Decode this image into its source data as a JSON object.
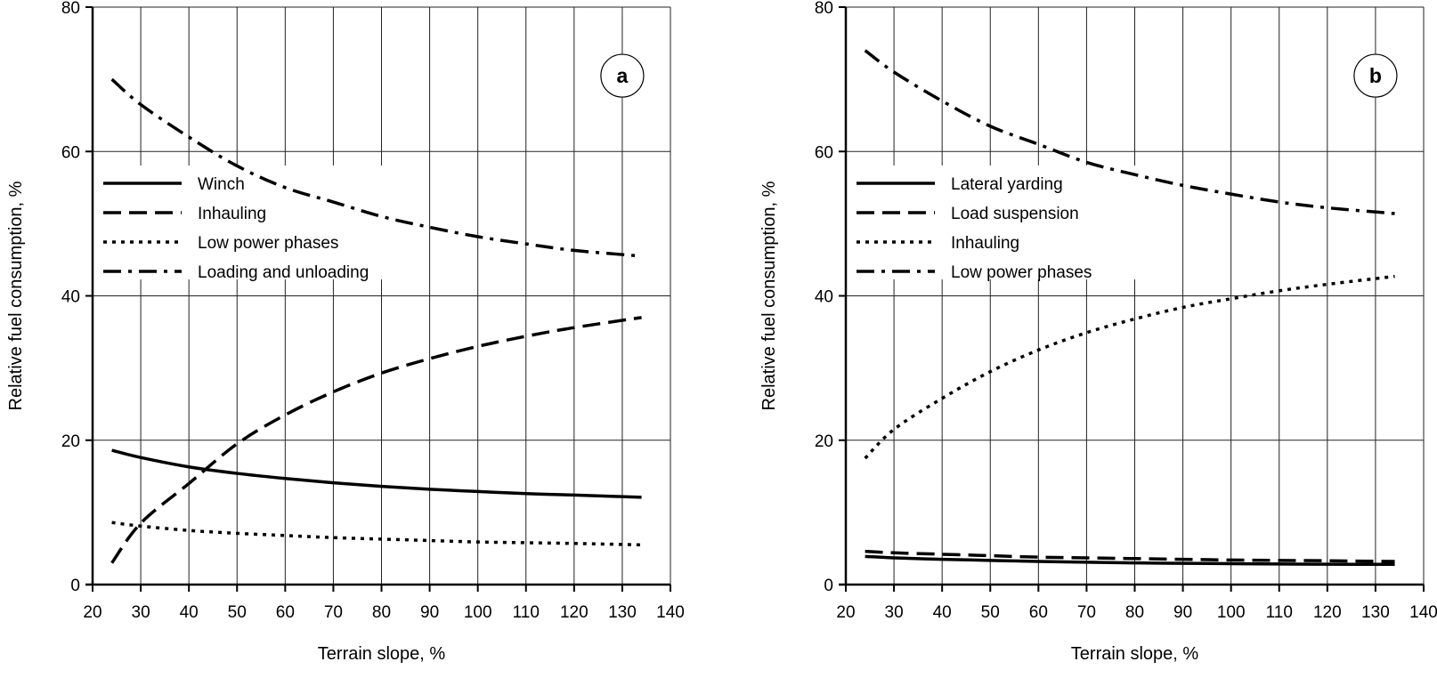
{
  "chart_data": [
    {
      "type": "line",
      "panel_label": "a",
      "xlabel": "Terrain slope, %",
      "ylabel": "Relative fuel consumption, %",
      "xlim": [
        20,
        140
      ],
      "ylim": [
        0,
        80
      ],
      "xticks": [
        20,
        30,
        40,
        50,
        60,
        70,
        80,
        90,
        100,
        110,
        120,
        130,
        140
      ],
      "yticks": [
        0,
        20,
        40,
        60,
        80
      ],
      "grid": true,
      "legend_position": "middle-left",
      "x": [
        24,
        30,
        40,
        50,
        60,
        70,
        80,
        90,
        100,
        110,
        120,
        134
      ],
      "series": [
        {
          "name": "Winch",
          "style": "solid",
          "values": [
            18.6,
            17.6,
            16.3,
            15.4,
            14.7,
            14.1,
            13.6,
            13.2,
            12.9,
            12.6,
            12.4,
            12.1
          ]
        },
        {
          "name": "Inhauling",
          "style": "dashed",
          "values": [
            3,
            8.5,
            14,
            19.5,
            23.5,
            26.7,
            29.3,
            31.3,
            33,
            34.4,
            35.6,
            37
          ]
        },
        {
          "name": "Low power phases",
          "style": "dotted",
          "values": [
            8.6,
            8.1,
            7.5,
            7.1,
            6.8,
            6.5,
            6.3,
            6.1,
            5.9,
            5.8,
            5.7,
            5.5
          ]
        },
        {
          "name": "Loading and unloading",
          "style": "dashdot",
          "values": [
            70,
            66.5,
            62,
            58,
            55,
            53,
            51,
            49.5,
            48.2,
            47.2,
            46.3,
            45.5
          ]
        }
      ]
    },
    {
      "type": "line",
      "panel_label": "b",
      "xlabel": "Terrain slope, %",
      "ylabel": "Relative fuel consumption, %",
      "xlim": [
        20,
        140
      ],
      "ylim": [
        0,
        80
      ],
      "xticks": [
        20,
        30,
        40,
        50,
        60,
        70,
        80,
        90,
        100,
        110,
        120,
        130,
        140
      ],
      "yticks": [
        0,
        20,
        40,
        60,
        80
      ],
      "grid": true,
      "legend_position": "middle-left",
      "x": [
        24,
        30,
        40,
        50,
        60,
        70,
        80,
        90,
        100,
        110,
        120,
        134
      ],
      "series": [
        {
          "name": "Lateral yarding",
          "style": "solid",
          "values": [
            3.9,
            3.7,
            3.5,
            3.35,
            3.2,
            3.1,
            3.0,
            2.95,
            2.9,
            2.85,
            2.82,
            2.8
          ]
        },
        {
          "name": "Load suspension",
          "style": "dashed",
          "values": [
            4.6,
            4.4,
            4.2,
            4.0,
            3.8,
            3.7,
            3.6,
            3.5,
            3.4,
            3.35,
            3.3,
            3.2
          ]
        },
        {
          "name": "Inhauling",
          "style": "dotted",
          "values": [
            17.5,
            21.5,
            25.8,
            29.5,
            32.5,
            34.9,
            36.8,
            38.4,
            39.6,
            40.7,
            41.6,
            42.7
          ]
        },
        {
          "name": "Low power phases",
          "style": "dashdot",
          "values": [
            74,
            71,
            67,
            63.5,
            61,
            58.5,
            56.8,
            55.3,
            54.1,
            53,
            52.2,
            51.4
          ]
        }
      ]
    }
  ]
}
